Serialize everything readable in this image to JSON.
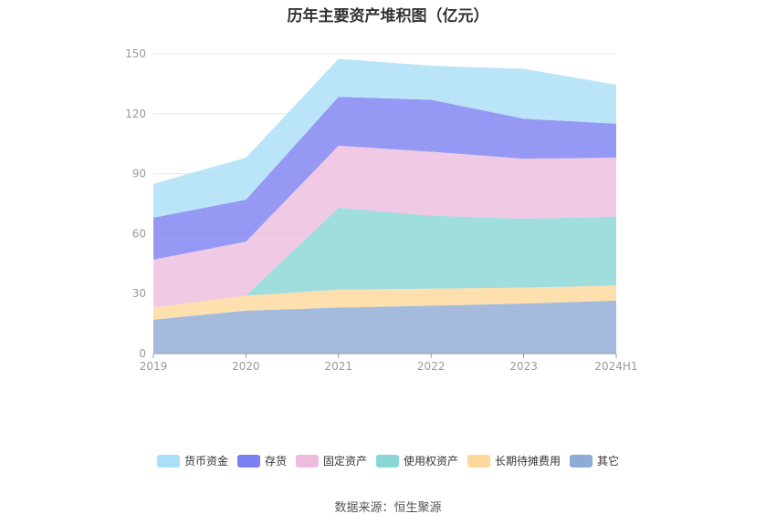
{
  "chart_data": {
    "type": "area",
    "stacked": true,
    "title": "历年主要资产堆积图（亿元）",
    "categories": [
      "2019",
      "2020",
      "2021",
      "2022",
      "2023",
      "2024H1"
    ],
    "ylim": [
      0,
      150
    ],
    "yticks": [
      0,
      30,
      60,
      90,
      120,
      150
    ],
    "grid": true,
    "legend_position": "bottom",
    "series": [
      {
        "name": "其它",
        "color": "#8eaad6",
        "values": [
          17,
          21.5,
          23,
          24,
          25,
          26.5
        ]
      },
      {
        "name": "长期待摊费用",
        "color": "#fdd89a",
        "values": [
          6,
          7.5,
          9,
          8.5,
          8,
          7.5
        ]
      },
      {
        "name": "使用权资产",
        "color": "#88d6d6",
        "values": [
          0,
          0,
          41,
          36.5,
          34.5,
          34.5
        ]
      },
      {
        "name": "固定资产",
        "color": "#ecbbdd",
        "values": [
          24,
          27,
          31,
          32,
          30,
          29.5
        ]
      },
      {
        "name": "存货",
        "color": "#7b7ff0",
        "values": [
          21,
          21,
          24.5,
          26,
          20,
          17
        ]
      },
      {
        "name": "货币资金",
        "color": "#a9dff8",
        "values": [
          17,
          21,
          19,
          17,
          25,
          19.5
        ]
      }
    ],
    "legend_order": [
      "货币资金",
      "存货",
      "固定资产",
      "使用权资产",
      "长期待摊费用",
      "其它"
    ]
  },
  "source": "数据来源：恒生聚源"
}
